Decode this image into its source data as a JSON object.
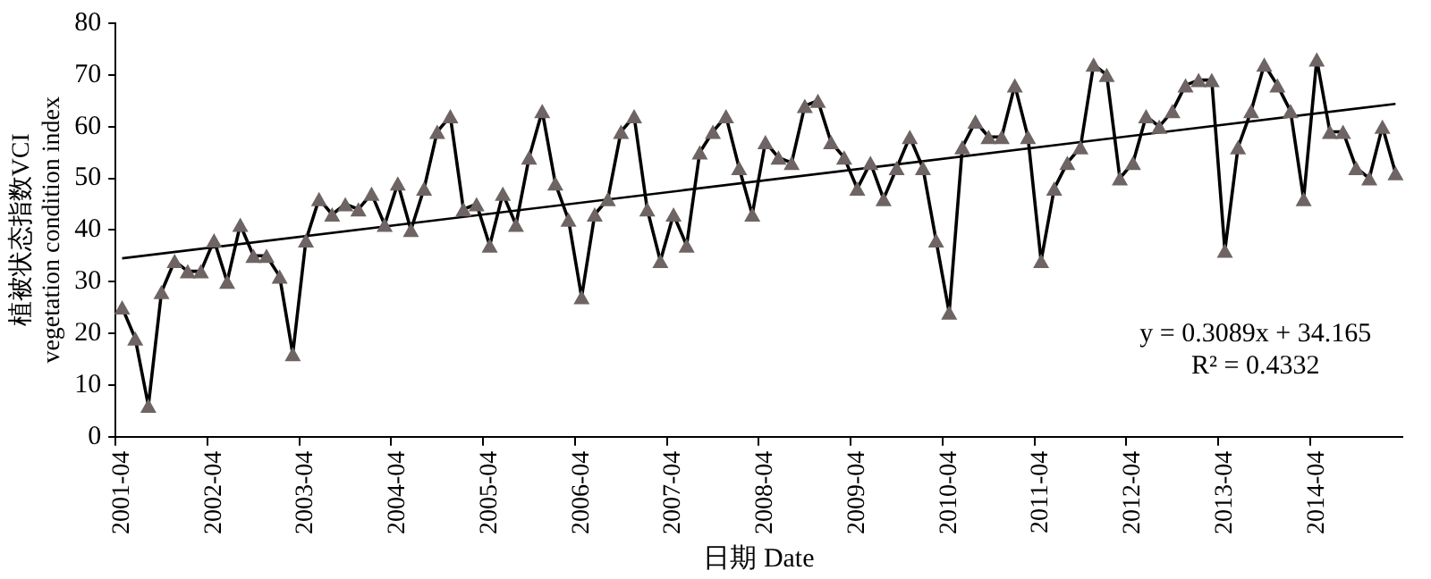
{
  "chart_data": {
    "type": "line",
    "xlabel": "日期 Date",
    "ylabel": "植被状态指数VCI\nvegetation condition index",
    "categories": [
      "2001-04",
      null,
      null,
      null,
      null,
      null,
      null,
      "2002-04",
      null,
      null,
      null,
      null,
      null,
      null,
      "2003-04",
      null,
      null,
      null,
      null,
      null,
      null,
      "2004-04",
      null,
      null,
      null,
      null,
      null,
      null,
      "2005-04",
      null,
      null,
      null,
      null,
      null,
      null,
      "2006-04",
      null,
      null,
      null,
      null,
      null,
      null,
      "2007-04",
      null,
      null,
      null,
      null,
      null,
      null,
      "2008-04",
      null,
      null,
      null,
      null,
      null,
      null,
      "2009-04",
      null,
      null,
      null,
      null,
      null,
      null,
      "2010-04",
      null,
      null,
      null,
      null,
      null,
      null,
      "2011-04",
      null,
      null,
      null,
      null,
      null,
      null,
      "2012-04",
      null,
      null,
      null,
      null,
      null,
      null,
      "2013-04",
      null,
      null,
      null,
      null,
      null,
      null,
      "2014-04",
      null,
      null,
      null,
      null,
      null,
      null
    ],
    "series": [
      {
        "color": "#000000",
        "marker": "triangle",
        "values": [
          25,
          19,
          6,
          28,
          34,
          32,
          32,
          38,
          30,
          41,
          35,
          35,
          31,
          16,
          38,
          46,
          43,
          45,
          44,
          47,
          41,
          49,
          40,
          48,
          59,
          62,
          44,
          45,
          37,
          47,
          41,
          54,
          63,
          49,
          42,
          27,
          43,
          46,
          59,
          62,
          44,
          34,
          43,
          37,
          55,
          59,
          62,
          52,
          43,
          57,
          54,
          53,
          64,
          65,
          57,
          54,
          48,
          53,
          46,
          52,
          58,
          52,
          38,
          24,
          56,
          61,
          58,
          58,
          68,
          58,
          34,
          48,
          53,
          56,
          72,
          70,
          50,
          53,
          62,
          60,
          63,
          68,
          69,
          69,
          36,
          56,
          63,
          72,
          68,
          63,
          46,
          73,
          59,
          59,
          52,
          50,
          60,
          51
        ]
      },
      {
        "color": "#000000",
        "marker": "none",
        "values": [
          34.5,
          null,
          null,
          null,
          null,
          null,
          null,
          null,
          null,
          null,
          null,
          null,
          null,
          null,
          null,
          null,
          null,
          null,
          null,
          null,
          null,
          null,
          null,
          null,
          null,
          null,
          null,
          null,
          null,
          null,
          null,
          null,
          null,
          null,
          null,
          null,
          null,
          null,
          null,
          null,
          null,
          null,
          null,
          null,
          null,
          null,
          null,
          null,
          null,
          null,
          null,
          null,
          null,
          null,
          null,
          null,
          null,
          null,
          null,
          null,
          null,
          null,
          null,
          null,
          null,
          null,
          null,
          null,
          null,
          null,
          null,
          null,
          null,
          null,
          null,
          null,
          null,
          null,
          null,
          null,
          null,
          null,
          null,
          null,
          null,
          null,
          null,
          null,
          null,
          null,
          null,
          null,
          null,
          null,
          null,
          null,
          null,
          64.4
        ]
      }
    ],
    "ylim": [
      0,
      80
    ],
    "yticks": [
      0,
      10,
      20,
      30,
      40,
      50,
      60,
      70,
      80
    ],
    "annotations": [
      "y = 0.3089x + 34.165",
      "R² = 0.4332"
    ],
    "grid": false,
    "legend": false
  }
}
